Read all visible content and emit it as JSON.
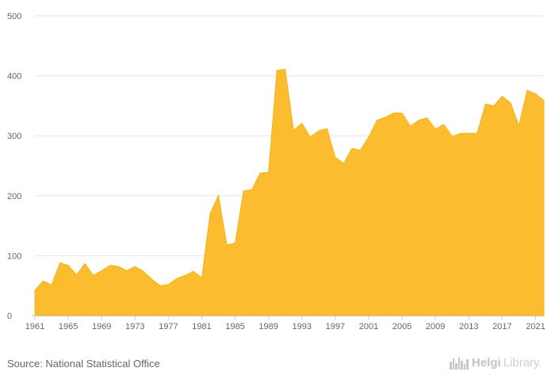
{
  "source_text": "Source: National Statistical Office",
  "brand": {
    "name": "Helgi",
    "suffix": "Library."
  },
  "colors": {
    "fill": "#fbbd2f",
    "stroke": "#f5b51e",
    "grid": "#e6e6e6",
    "text": "#666666"
  },
  "chart_data": {
    "type": "area",
    "title": "",
    "xlabel": "",
    "ylabel": "",
    "ylim": [
      0,
      500
    ],
    "y_ticks": [
      0,
      100,
      200,
      300,
      400,
      500
    ],
    "x_ticks": [
      1961,
      1965,
      1969,
      1973,
      1977,
      1981,
      1985,
      1989,
      1993,
      1997,
      2001,
      2005,
      2009,
      2013,
      2017,
      2021
    ],
    "grid": "horizontal",
    "legend": "none",
    "series": [
      {
        "x": [
          1961,
          1962,
          1963,
          1964,
          1965,
          1966,
          1967,
          1968,
          1969,
          1970,
          1971,
          1972,
          1973,
          1974,
          1975,
          1976,
          1977,
          1978,
          1979,
          1980,
          1981,
          1982,
          1983,
          1984,
          1985,
          1986,
          1987,
          1988,
          1989,
          1990,
          1991,
          1992,
          1993,
          1994,
          1995,
          1996,
          1997,
          1998,
          1999,
          2000,
          2001,
          2002,
          2003,
          2004,
          2005,
          2006,
          2007,
          2008,
          2009,
          2010,
          2011,
          2012,
          2013,
          2014,
          2015,
          2016,
          2017,
          2018,
          2019,
          2020,
          2021,
          2022
        ],
        "values": [
          42,
          58,
          51,
          88,
          84,
          68,
          87,
          67,
          75,
          84,
          82,
          75,
          82,
          74,
          61,
          50,
          52,
          62,
          67,
          74,
          63,
          170,
          201,
          118,
          121,
          208,
          210,
          238,
          239,
          409,
          411,
          309,
          321,
          298,
          308,
          312,
          264,
          254,
          279,
          276,
          298,
          326,
          331,
          338,
          338,
          316,
          326,
          330,
          311,
          319,
          299,
          304,
          304,
          304,
          353,
          350,
          366,
          355,
          317,
          376,
          370,
          359
        ]
      }
    ]
  }
}
